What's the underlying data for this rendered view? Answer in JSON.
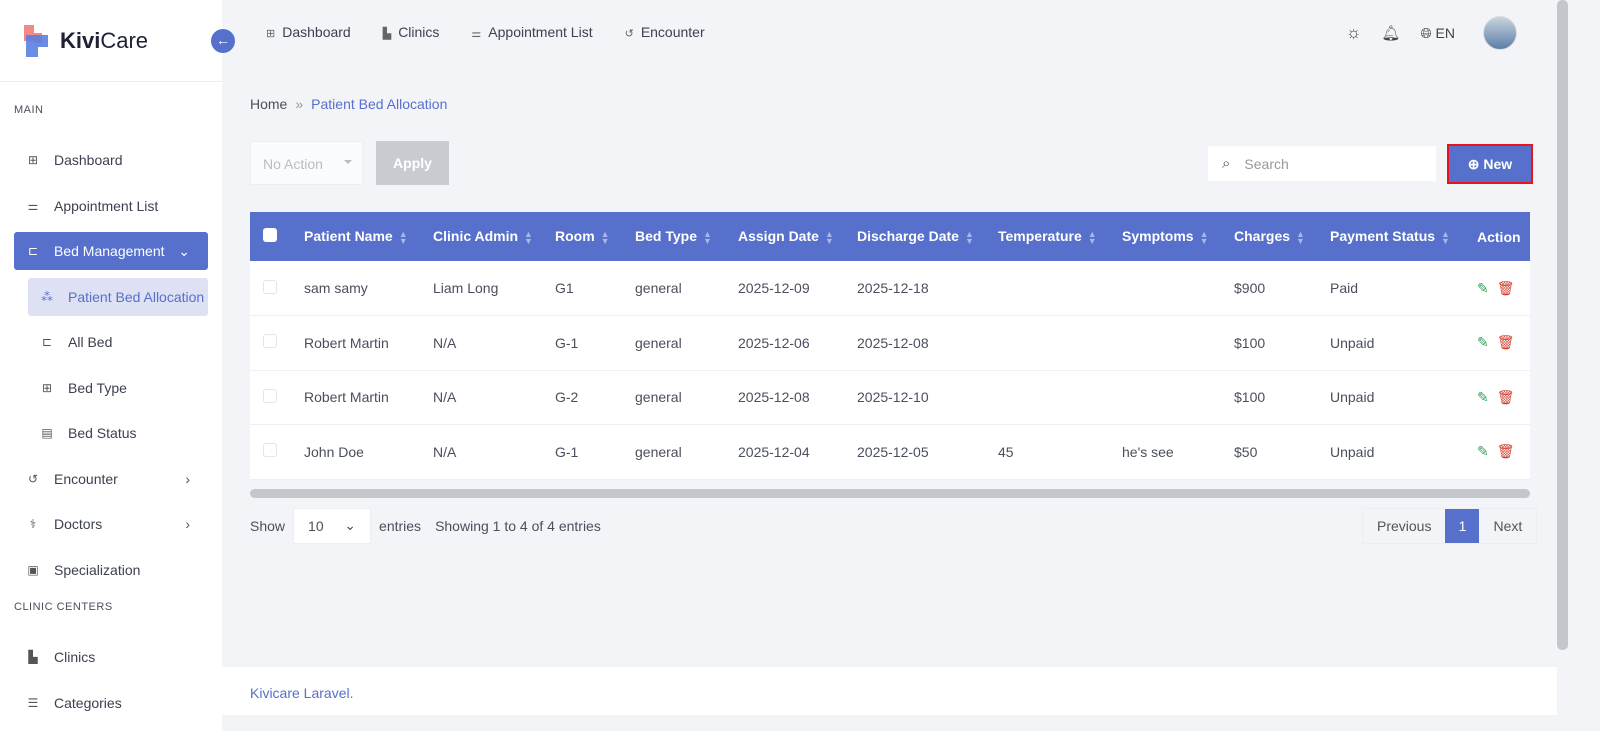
{
  "brand": {
    "name_bold": "Kivi",
    "name_rest": "Care",
    "accent": "#5670cb"
  },
  "sidebar": {
    "section_main": "MAIN",
    "items": [
      {
        "label": "Dashboard",
        "icon": "grid-icon"
      },
      {
        "label": "Appointment List",
        "icon": "sliders-icon"
      },
      {
        "label": "Bed Management",
        "icon": "bed-icon",
        "active": true
      },
      {
        "label": "Patient Bed Allocation",
        "icon": "allocation-icon",
        "active": true
      },
      {
        "label": "All Bed",
        "icon": "bed-icon"
      },
      {
        "label": "Bed Type",
        "icon": "grid-icon"
      },
      {
        "label": "Bed Status",
        "icon": "clipboard-icon"
      },
      {
        "label": "Encounter",
        "icon": "history-icon"
      },
      {
        "label": "Doctors",
        "icon": "stethoscope-icon"
      },
      {
        "label": "Specialization",
        "icon": "calendar-heart-icon"
      }
    ],
    "section_clinic": "CLINIC CENTERS",
    "clinic_items": [
      {
        "label": "Clinics",
        "icon": "building-icon"
      },
      {
        "label": "Categories",
        "icon": "list-icon"
      }
    ]
  },
  "topnav": [
    {
      "label": "Dashboard"
    },
    {
      "label": "Clinics"
    },
    {
      "label": "Appointment List"
    },
    {
      "label": "Encounter"
    }
  ],
  "topbar": {
    "language": "EN"
  },
  "breadcrumb": {
    "home": "Home",
    "current": "Patient Bed Allocation"
  },
  "toolbar": {
    "bulk_action": "No Action",
    "apply": "Apply",
    "search_placeholder": "Search",
    "new": "New"
  },
  "table": {
    "headers": [
      "Patient Name",
      "Clinic Admin",
      "Room",
      "Bed Type",
      "Assign Date",
      "Discharge Date",
      "Temperature",
      "Symptoms",
      "Charges",
      "Payment Status",
      "Action"
    ],
    "rows": [
      [
        "sam samy",
        "Liam Long",
        "G1",
        "general",
        "2025-12-09",
        "2025-12-18",
        "",
        "",
        "$900",
        "Paid"
      ],
      [
        "Robert Martin",
        "N/A",
        "G-1",
        "general",
        "2025-12-06",
        "2025-12-08",
        "",
        "",
        "$100",
        "Unpaid"
      ],
      [
        "Robert Martin",
        "N/A",
        "G-2",
        "general",
        "2025-12-08",
        "2025-12-10",
        "",
        "",
        "$100",
        "Unpaid"
      ],
      [
        "John Doe",
        "N/A",
        "G-1",
        "general",
        "2025-12-04",
        "2025-12-05",
        "45",
        "he's see",
        "$50",
        "Unpaid"
      ]
    ]
  },
  "footer_controls": {
    "show": "Show",
    "page_size": "10",
    "entries": "entries",
    "info": "Showing 1 to 4 of 4 entries",
    "previous": "Previous",
    "page": "1",
    "next": "Next"
  },
  "footer": {
    "text": "Kivicare Laravel."
  }
}
